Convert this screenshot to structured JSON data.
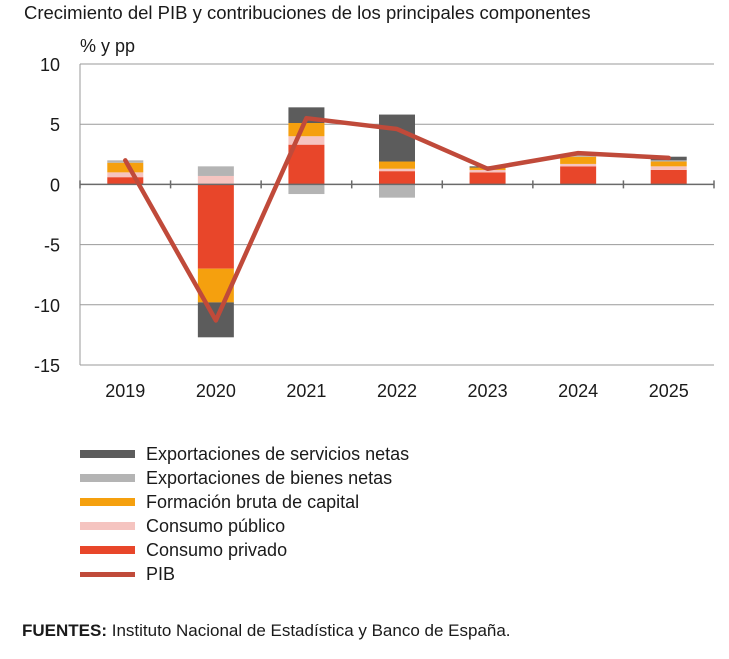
{
  "title": "Crecimiento del PIB y contribuciones de los principales componentes",
  "source": {
    "label": "FUENTES:",
    "text": "Instituto Nacional de Estadística y Banco de España."
  },
  "chart_data": {
    "type": "bar",
    "stacked": true,
    "ylabel": "% y pp",
    "ylim": [
      -15,
      10
    ],
    "yticks": [
      10,
      5,
      0,
      -5,
      -10,
      -15
    ],
    "grid": true,
    "legend_position": "bottom",
    "categories": [
      "2019",
      "2020",
      "2021",
      "2022",
      "2023",
      "2024",
      "2025"
    ],
    "series": [
      {
        "name": "Consumo privado",
        "color": "#e8462a",
        "values": [
          0.6,
          -7.0,
          3.3,
          1.1,
          1.0,
          1.5,
          1.2
        ]
      },
      {
        "name": "Consumo público",
        "color": "#f5c4c0",
        "values": [
          0.4,
          0.7,
          0.7,
          0.2,
          0.2,
          0.2,
          0.3
        ]
      },
      {
        "name": "Formación bruta de capital",
        "color": "#f5a00e",
        "values": [
          0.8,
          -2.8,
          1.1,
          0.6,
          0.2,
          0.6,
          0.4
        ]
      },
      {
        "name": "Exportaciones de bienes netas",
        "color": "#b4b4b4",
        "values": [
          0.2,
          0.8,
          -0.8,
          -1.1,
          0.0,
          0.1,
          0.1
        ]
      },
      {
        "name": "Exportaciones de servicios netas",
        "color": "#5c5c5c",
        "values": [
          0.0,
          -2.9,
          1.3,
          3.9,
          0.1,
          0.1,
          0.3
        ]
      }
    ],
    "line": {
      "name": "PIB",
      "color": "#c04a3a",
      "values": [
        2.0,
        -11.3,
        5.5,
        4.6,
        1.3,
        2.6,
        2.2
      ]
    }
  }
}
